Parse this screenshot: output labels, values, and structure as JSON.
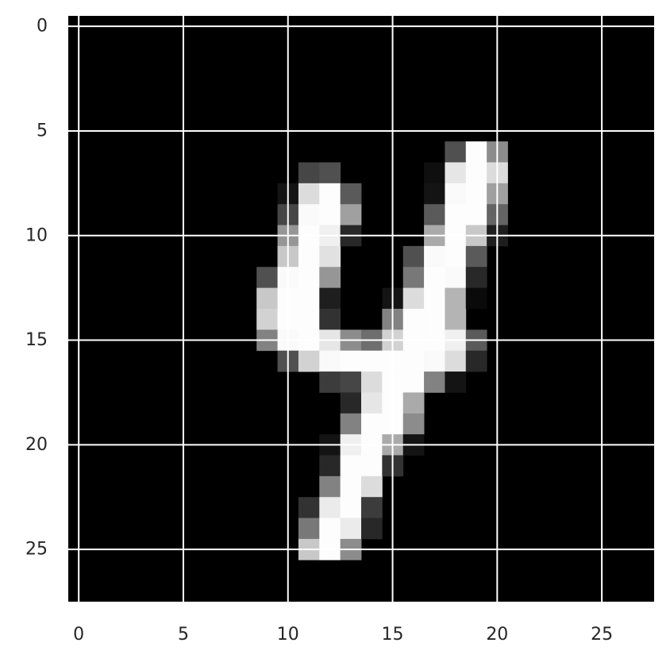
{
  "chart_data": {
    "type": "heatmap",
    "colormap": "gray",
    "grid": true,
    "grid_color": "#ffffff",
    "xlim": [
      -0.5,
      27.5
    ],
    "ylim": [
      27.5,
      -0.5
    ],
    "x_ticks": [
      0,
      5,
      10,
      15,
      20,
      25
    ],
    "y_ticks": [
      0,
      5,
      10,
      15,
      20,
      25
    ],
    "x_tick_labels": [
      "0",
      "5",
      "10",
      "15",
      "20",
      "25"
    ],
    "y_tick_labels": [
      "0",
      "5",
      "10",
      "15",
      "20",
      "25"
    ],
    "value_range": [
      0,
      255
    ],
    "pixels": [
      [
        6,
        18,
        80
      ],
      [
        6,
        19,
        253
      ],
      [
        6,
        20,
        140
      ],
      [
        7,
        11,
        70
      ],
      [
        7,
        12,
        80
      ],
      [
        7,
        17,
        15
      ],
      [
        7,
        18,
        230
      ],
      [
        7,
        19,
        253
      ],
      [
        7,
        20,
        220
      ],
      [
        8,
        10,
        20
      ],
      [
        8,
        11,
        220
      ],
      [
        8,
        12,
        253
      ],
      [
        8,
        13,
        90
      ],
      [
        8,
        17,
        20
      ],
      [
        8,
        18,
        250
      ],
      [
        8,
        19,
        253
      ],
      [
        8,
        20,
        160
      ],
      [
        9,
        10,
        70
      ],
      [
        9,
        11,
        250
      ],
      [
        9,
        12,
        253
      ],
      [
        9,
        13,
        160
      ],
      [
        9,
        17,
        90
      ],
      [
        9,
        18,
        253
      ],
      [
        9,
        19,
        253
      ],
      [
        9,
        20,
        100
      ],
      [
        10,
        10,
        150
      ],
      [
        10,
        11,
        253
      ],
      [
        10,
        12,
        240
      ],
      [
        10,
        13,
        40
      ],
      [
        10,
        17,
        170
      ],
      [
        10,
        18,
        253
      ],
      [
        10,
        19,
        200
      ],
      [
        10,
        20,
        30
      ],
      [
        11,
        10,
        200
      ],
      [
        11,
        11,
        253
      ],
      [
        11,
        12,
        225
      ],
      [
        11,
        16,
        80
      ],
      [
        11,
        17,
        250
      ],
      [
        11,
        18,
        253
      ],
      [
        11,
        19,
        90
      ],
      [
        12,
        9,
        80
      ],
      [
        12,
        10,
        250
      ],
      [
        12,
        11,
        253
      ],
      [
        12,
        12,
        150
      ],
      [
        12,
        16,
        120
      ],
      [
        12,
        17,
        253
      ],
      [
        12,
        18,
        250
      ],
      [
        12,
        19,
        40
      ],
      [
        13,
        9,
        200
      ],
      [
        13,
        10,
        253
      ],
      [
        13,
        11,
        253
      ],
      [
        13,
        12,
        30
      ],
      [
        13,
        15,
        20
      ],
      [
        13,
        16,
        220
      ],
      [
        13,
        17,
        253
      ],
      [
        13,
        18,
        180
      ],
      [
        13,
        19,
        10
      ],
      [
        14,
        9,
        210
      ],
      [
        14,
        10,
        253
      ],
      [
        14,
        11,
        253
      ],
      [
        14,
        12,
        50
      ],
      [
        14,
        15,
        130
      ],
      [
        14,
        16,
        253
      ],
      [
        14,
        17,
        253
      ],
      [
        14,
        18,
        180
      ],
      [
        15,
        9,
        130
      ],
      [
        15,
        10,
        250
      ],
      [
        15,
        11,
        253
      ],
      [
        15,
        12,
        230
      ],
      [
        15,
        13,
        140
      ],
      [
        15,
        14,
        110
      ],
      [
        15,
        15,
        210
      ],
      [
        15,
        16,
        253
      ],
      [
        15,
        17,
        253
      ],
      [
        15,
        18,
        240
      ],
      [
        15,
        19,
        90
      ],
      [
        16,
        10,
        80
      ],
      [
        16,
        11,
        210
      ],
      [
        16,
        12,
        250
      ],
      [
        16,
        13,
        253
      ],
      [
        16,
        14,
        253
      ],
      [
        16,
        15,
        253
      ],
      [
        16,
        16,
        253
      ],
      [
        16,
        17,
        250
      ],
      [
        16,
        18,
        220
      ],
      [
        16,
        19,
        40
      ],
      [
        17,
        12,
        60
      ],
      [
        17,
        13,
        70
      ],
      [
        17,
        14,
        220
      ],
      [
        17,
        15,
        253
      ],
      [
        17,
        16,
        253
      ],
      [
        17,
        17,
        130
      ],
      [
        17,
        18,
        20
      ],
      [
        18,
        13,
        40
      ],
      [
        18,
        14,
        230
      ],
      [
        18,
        15,
        253
      ],
      [
        18,
        16,
        170
      ],
      [
        19,
        13,
        130
      ],
      [
        19,
        14,
        253
      ],
      [
        19,
        15,
        253
      ],
      [
        19,
        16,
        140
      ],
      [
        20,
        12,
        20
      ],
      [
        20,
        13,
        240
      ],
      [
        20,
        14,
        253
      ],
      [
        20,
        15,
        170
      ],
      [
        20,
        16,
        20
      ],
      [
        21,
        12,
        40
      ],
      [
        21,
        13,
        253
      ],
      [
        21,
        14,
        253
      ],
      [
        21,
        15,
        50
      ],
      [
        22,
        12,
        130
      ],
      [
        22,
        13,
        253
      ],
      [
        22,
        14,
        220
      ],
      [
        23,
        11,
        50
      ],
      [
        23,
        12,
        235
      ],
      [
        23,
        13,
        253
      ],
      [
        23,
        14,
        60
      ],
      [
        24,
        11,
        120
      ],
      [
        24,
        12,
        253
      ],
      [
        24,
        13,
        235
      ],
      [
        24,
        14,
        40
      ],
      [
        25,
        11,
        200
      ],
      [
        25,
        12,
        253
      ],
      [
        25,
        13,
        140
      ]
    ]
  }
}
